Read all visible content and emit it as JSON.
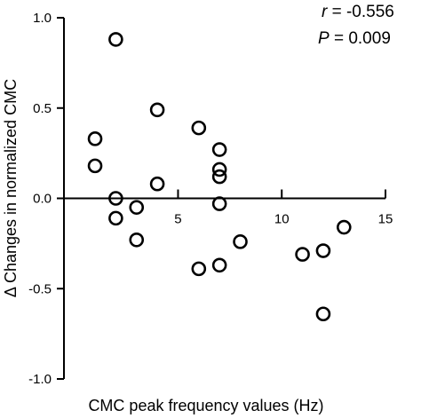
{
  "chart_data": {
    "type": "scatter",
    "xlabel": "CMC peak frequency values (Hz)",
    "ylabel": "Δ Changes in normalized CMC",
    "xlim": [
      -0.5,
      15
    ],
    "ylim": [
      -1.0,
      1.0
    ],
    "x_ticks": [
      5,
      10,
      15
    ],
    "y_ticks": [
      1.0,
      0.5,
      0.0,
      -0.5,
      -1.0
    ],
    "x_tick_labels": [
      "5",
      "10",
      "15"
    ],
    "y_tick_labels": [
      "1.0",
      "0.5",
      "0.0",
      "-0.5",
      "-1.0"
    ],
    "grid": false,
    "points": [
      {
        "x": 2,
        "y": 0.88
      },
      {
        "x": 1,
        "y": 0.33
      },
      {
        "x": 1,
        "y": 0.18
      },
      {
        "x": 2,
        "y": 0.0
      },
      {
        "x": 2,
        "y": -0.11
      },
      {
        "x": 3,
        "y": -0.05
      },
      {
        "x": 3,
        "y": -0.23
      },
      {
        "x": 4,
        "y": 0.49
      },
      {
        "x": 4,
        "y": 0.08
      },
      {
        "x": 6,
        "y": 0.39
      },
      {
        "x": 6,
        "y": -0.39
      },
      {
        "x": 7,
        "y": 0.27
      },
      {
        "x": 7,
        "y": 0.16
      },
      {
        "x": 7,
        "y": 0.12
      },
      {
        "x": 7,
        "y": -0.03
      },
      {
        "x": 7,
        "y": -0.37
      },
      {
        "x": 8,
        "y": -0.24
      },
      {
        "x": 11,
        "y": -0.31
      },
      {
        "x": 12,
        "y": -0.29
      },
      {
        "x": 12,
        "y": -0.64
      },
      {
        "x": 13,
        "y": -0.16
      }
    ],
    "annotations": {
      "r_label": "r",
      "r_value": " = -0.556",
      "p_label": "P",
      "p_value": " = 0.009"
    }
  }
}
